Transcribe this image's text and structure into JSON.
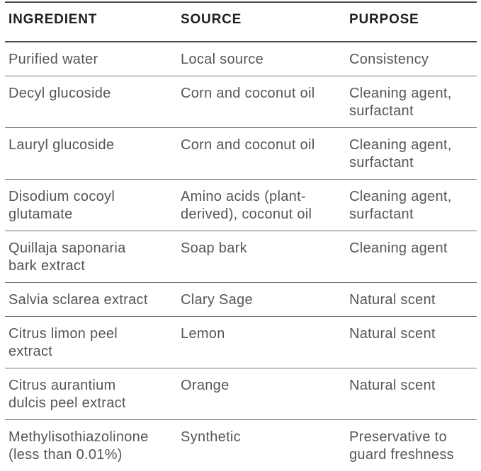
{
  "colors": {
    "background": "#ffffff",
    "header_text": "#1e1f23",
    "body_text": "#54565b",
    "rule_dark": "#4b4b4f",
    "rule_light": "#707074"
  },
  "table": {
    "columns": [
      "INGREDIENT",
      "SOURCE",
      "PURPOSE"
    ],
    "rows": [
      {
        "ingredient": "Purified water",
        "source": "Local source",
        "purpose": "Consistency"
      },
      {
        "ingredient": "Decyl glucoside",
        "source": "Corn and coconut oil",
        "purpose": "Cleaning agent,\nsurfactant"
      },
      {
        "ingredient": "Lauryl glucoside",
        "source": "Corn and coconut oil",
        "purpose": "Cleaning agent,\nsurfactant"
      },
      {
        "ingredient": "Disodium cocoyl\nglutamate",
        "source": "Amino acids (plant-\nderived), coconut oil",
        "purpose": "Cleaning agent,\nsurfactant"
      },
      {
        "ingredient": "Quillaja saponaria\nbark extract",
        "source": "Soap bark",
        "purpose": "Cleaning agent"
      },
      {
        "ingredient": "Salvia sclarea extract",
        "source": "Clary Sage",
        "purpose": "Natural scent"
      },
      {
        "ingredient": "Citrus limon peel\nextract",
        "source": "Lemon",
        "purpose": "Natural scent"
      },
      {
        "ingredient": "Citrus aurantium\ndulcis peel extract",
        "source": "Orange",
        "purpose": "Natural scent"
      },
      {
        "ingredient": "Methylisothiazolinone\n(less than 0.01%)",
        "source": "Synthetic",
        "purpose": "Preservative to\nguard freshness"
      }
    ]
  }
}
